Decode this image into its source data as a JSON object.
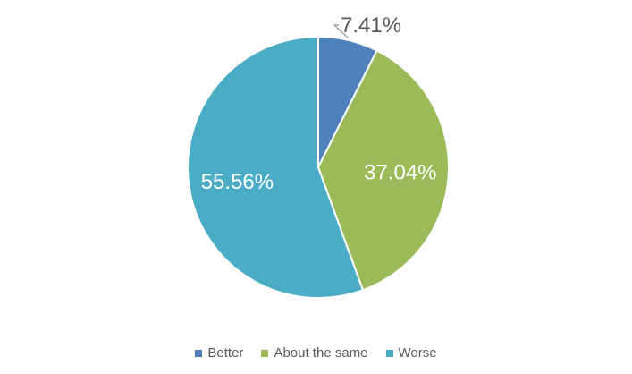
{
  "chart_data": {
    "type": "pie",
    "categories": [
      "Better",
      "About the same",
      "Worse"
    ],
    "values": [
      7.41,
      37.04,
      55.56
    ],
    "data_labels": [
      "7.41%",
      "37.04%",
      "55.56%"
    ],
    "colors": [
      "#4F81BD",
      "#9BBB59",
      "#4BACC6"
    ],
    "legend_position": "bottom",
    "start_angle": "top, clockwise"
  }
}
